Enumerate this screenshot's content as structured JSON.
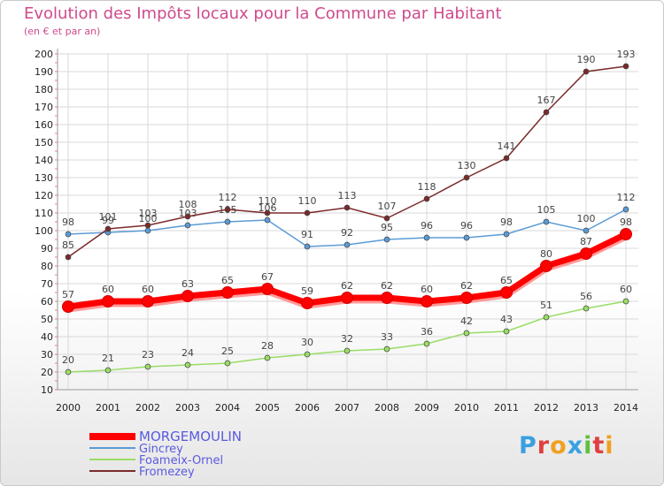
{
  "chart_data": {
    "type": "line",
    "title": "Evolution des Impôts locaux pour la Commune par Habitant",
    "subtitle": "(en € et par an)",
    "x": [
      "2000",
      "2001",
      "2002",
      "2003",
      "2004",
      "2005",
      "2006",
      "2007",
      "2008",
      "2009",
      "2010",
      "2011",
      "2012",
      "2013",
      "2014"
    ],
    "yticks": [
      10,
      20,
      30,
      40,
      50,
      60,
      70,
      80,
      90,
      100,
      110,
      120,
      130,
      140,
      150,
      160,
      170,
      180,
      190,
      200
    ],
    "ylim": [
      10,
      200
    ],
    "grid": true,
    "legend_position": "bottom-left",
    "series": [
      {
        "name": "MORGEMOULIN",
        "color": "#ff0000",
        "highlight": true,
        "values": [
          57,
          60,
          60,
          63,
          65,
          67,
          59,
          62,
          62,
          60,
          62,
          65,
          80,
          87,
          98
        ],
        "labels": [
          "57",
          "60",
          "60",
          "63",
          "65",
          "67",
          "59",
          "62",
          "62",
          "60",
          "62",
          "65",
          "80",
          "87",
          "98"
        ]
      },
      {
        "name": "Gincrey",
        "color": "#5b9bd5",
        "highlight": false,
        "values": [
          98,
          99,
          100,
          103,
          105,
          106,
          91,
          92,
          95,
          96,
          96,
          98,
          105,
          100,
          112
        ],
        "labels": [
          "98",
          "99",
          "100",
          "103",
          "105",
          "106",
          "91",
          "92",
          "95",
          "96",
          "96",
          "98",
          "105",
          "100",
          "112"
        ]
      },
      {
        "name": "Foameix-Ornel",
        "color": "#99dd66",
        "highlight": false,
        "values": [
          20,
          21,
          23,
          24,
          25,
          28,
          30,
          32,
          33,
          36,
          42,
          43,
          51,
          56,
          60
        ],
        "labels": [
          "20",
          "21",
          "23",
          "24",
          "25",
          "28",
          "30",
          "32",
          "33",
          "36",
          "42",
          "43",
          "51",
          "56",
          "60"
        ]
      },
      {
        "name": "Fromezey",
        "color": "#7a2a2a",
        "highlight": false,
        "values": [
          85,
          101,
          103,
          108,
          112,
          110,
          110,
          113,
          107,
          118,
          130,
          141,
          167,
          190,
          193
        ],
        "labels": [
          "85",
          "101",
          "103",
          "108",
          "112",
          "110",
          "110",
          "113",
          "107",
          "118",
          "130",
          "141",
          "167",
          "190",
          "193"
        ]
      }
    ]
  },
  "logo": {
    "letters": [
      "P",
      "r",
      "o",
      "x",
      "i",
      "t",
      "i"
    ],
    "colors": [
      "#3aa0e0",
      "#e04040",
      "#f0a020",
      "#3aa0e0",
      "#60c040",
      "#e04040",
      "#f0a020"
    ]
  }
}
